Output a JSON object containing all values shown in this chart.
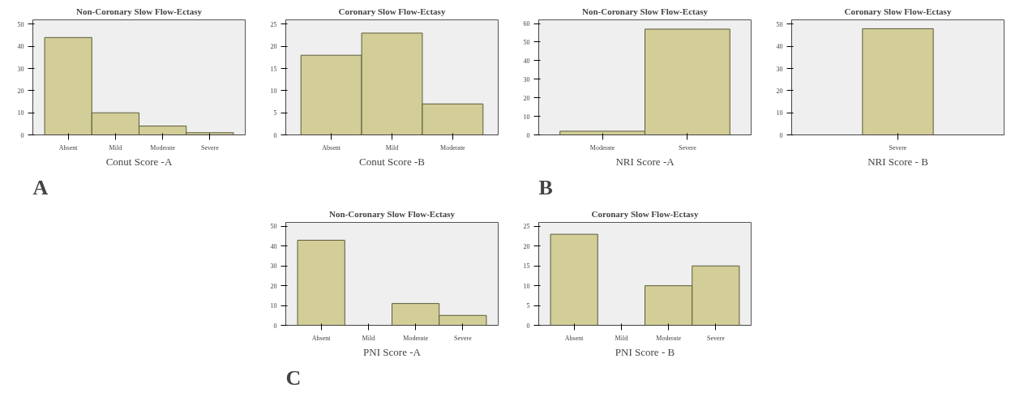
{
  "chart_data": [
    {
      "type": "bar",
      "title": "Non-Coronary Slow Flow-Ectasy",
      "xlabel": "Conut Score -A",
      "categories": [
        "Absent",
        "Mild",
        "Moderate",
        "Severe"
      ],
      "values": [
        44,
        10,
        4,
        1
      ],
      "color": "#d3cd97",
      "ylim": [
        0,
        52
      ],
      "yticks": [
        0,
        10,
        20,
        30,
        40,
        50
      ],
      "annotations": [
        "A"
      ]
    },
    {
      "type": "bar",
      "title": "Coronary Slow Flow-Ectasy",
      "xlabel": "Conut Score -B",
      "categories": [
        "Absent",
        "Mild",
        "Moderate"
      ],
      "values": [
        18,
        23,
        7
      ],
      "color": "#d3cd97",
      "ylim": [
        0,
        26
      ],
      "yticks": [
        0,
        5,
        10,
        15,
        20,
        25
      ]
    },
    {
      "type": "bar",
      "title": "Non-Coronary Slow Flow-Ectasy",
      "xlabel": "NRI Score -A",
      "categories": [
        "Moderate",
        "Severe"
      ],
      "values": [
        2,
        57
      ],
      "color": "#d3cd97",
      "ylim": [
        0,
        62
      ],
      "yticks": [
        0,
        10,
        20,
        30,
        40,
        50,
        60
      ],
      "annotations": [
        "B"
      ]
    },
    {
      "type": "bar",
      "title": "Coronary Slow Flow-Ectasy",
      "xlabel": "NRI Score - B",
      "categories": [
        "Severe"
      ],
      "values": [
        48
      ],
      "color": "#d3cd97",
      "ylim": [
        0,
        52
      ],
      "yticks": [
        0,
        10,
        20,
        30,
        40,
        50
      ]
    },
    {
      "type": "bar",
      "title": "Non-Coronary Slow Flow-Ectasy",
      "xlabel": "PNI Score -A",
      "categories": [
        "Absent",
        "Mild",
        "Moderate",
        "Severe"
      ],
      "values": [
        43,
        null,
        11,
        5
      ],
      "color": "#d3cd97",
      "ylim": [
        0,
        52
      ],
      "yticks": [
        0,
        10,
        20,
        30,
        40,
        50
      ],
      "annotations": [
        "C"
      ]
    },
    {
      "type": "bar",
      "title": "Coronary Slow Flow-Ectasy",
      "xlabel": "PNI Score - B",
      "categories": [
        "Absent",
        "Mild",
        "Moderate",
        "Severe"
      ],
      "values": [
        23,
        null,
        10,
        15
      ],
      "color": "#d3cd97",
      "ylim": [
        0,
        26
      ],
      "yticks": [
        0,
        5,
        10,
        15,
        20,
        25
      ]
    }
  ]
}
